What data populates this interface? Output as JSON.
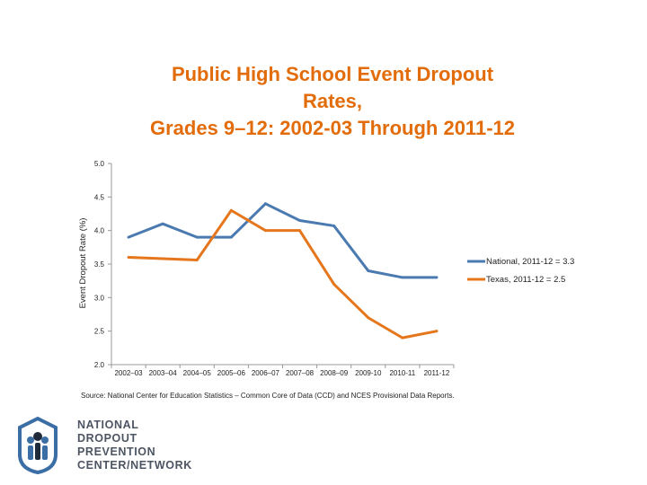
{
  "chart_data": {
    "type": "line",
    "title_lines": [
      "Public High School Event Dropout",
      "Rates,",
      "Grades 9–12: 2002-03 Through 2011-12"
    ],
    "xlabel": "",
    "ylabel": "Event Dropout Rate (%)",
    "categories": [
      "2002–03",
      "2003–04",
      "2004–05",
      "2005–06",
      "2006–07",
      "2007–08",
      "2008–09",
      "2009-10",
      "2010-11",
      "2011-12"
    ],
    "ylim": [
      2.0,
      5.0
    ],
    "yticks": [
      "2.0",
      "2.5",
      "3.0",
      "3.5",
      "4.0",
      "4.5",
      "5.0"
    ],
    "grid": false,
    "legend_position": "right",
    "series": [
      {
        "name": "National, 2011-12 = 3.3",
        "color": "#4a7ab0",
        "values": [
          3.9,
          4.1,
          3.9,
          3.9,
          4.4,
          4.15,
          4.07,
          3.4,
          3.3,
          3.3
        ]
      },
      {
        "name": "Texas, 2011-12 = 2.5",
        "color": "#e5761b",
        "values": [
          3.6,
          3.58,
          3.56,
          4.3,
          4.0,
          4.0,
          3.2,
          2.7,
          2.4,
          2.5
        ]
      }
    ]
  },
  "source": "Source: National Center for Education Statistics – Common Core of Data (CCD) and NCES Provisional Data Reports.",
  "logo": {
    "lines": [
      "NATIONAL",
      "DROPOUT",
      "PREVENTION",
      "CENTER/NETWORK"
    ],
    "color": "#4d5563",
    "accent": "#3a6ea5"
  }
}
